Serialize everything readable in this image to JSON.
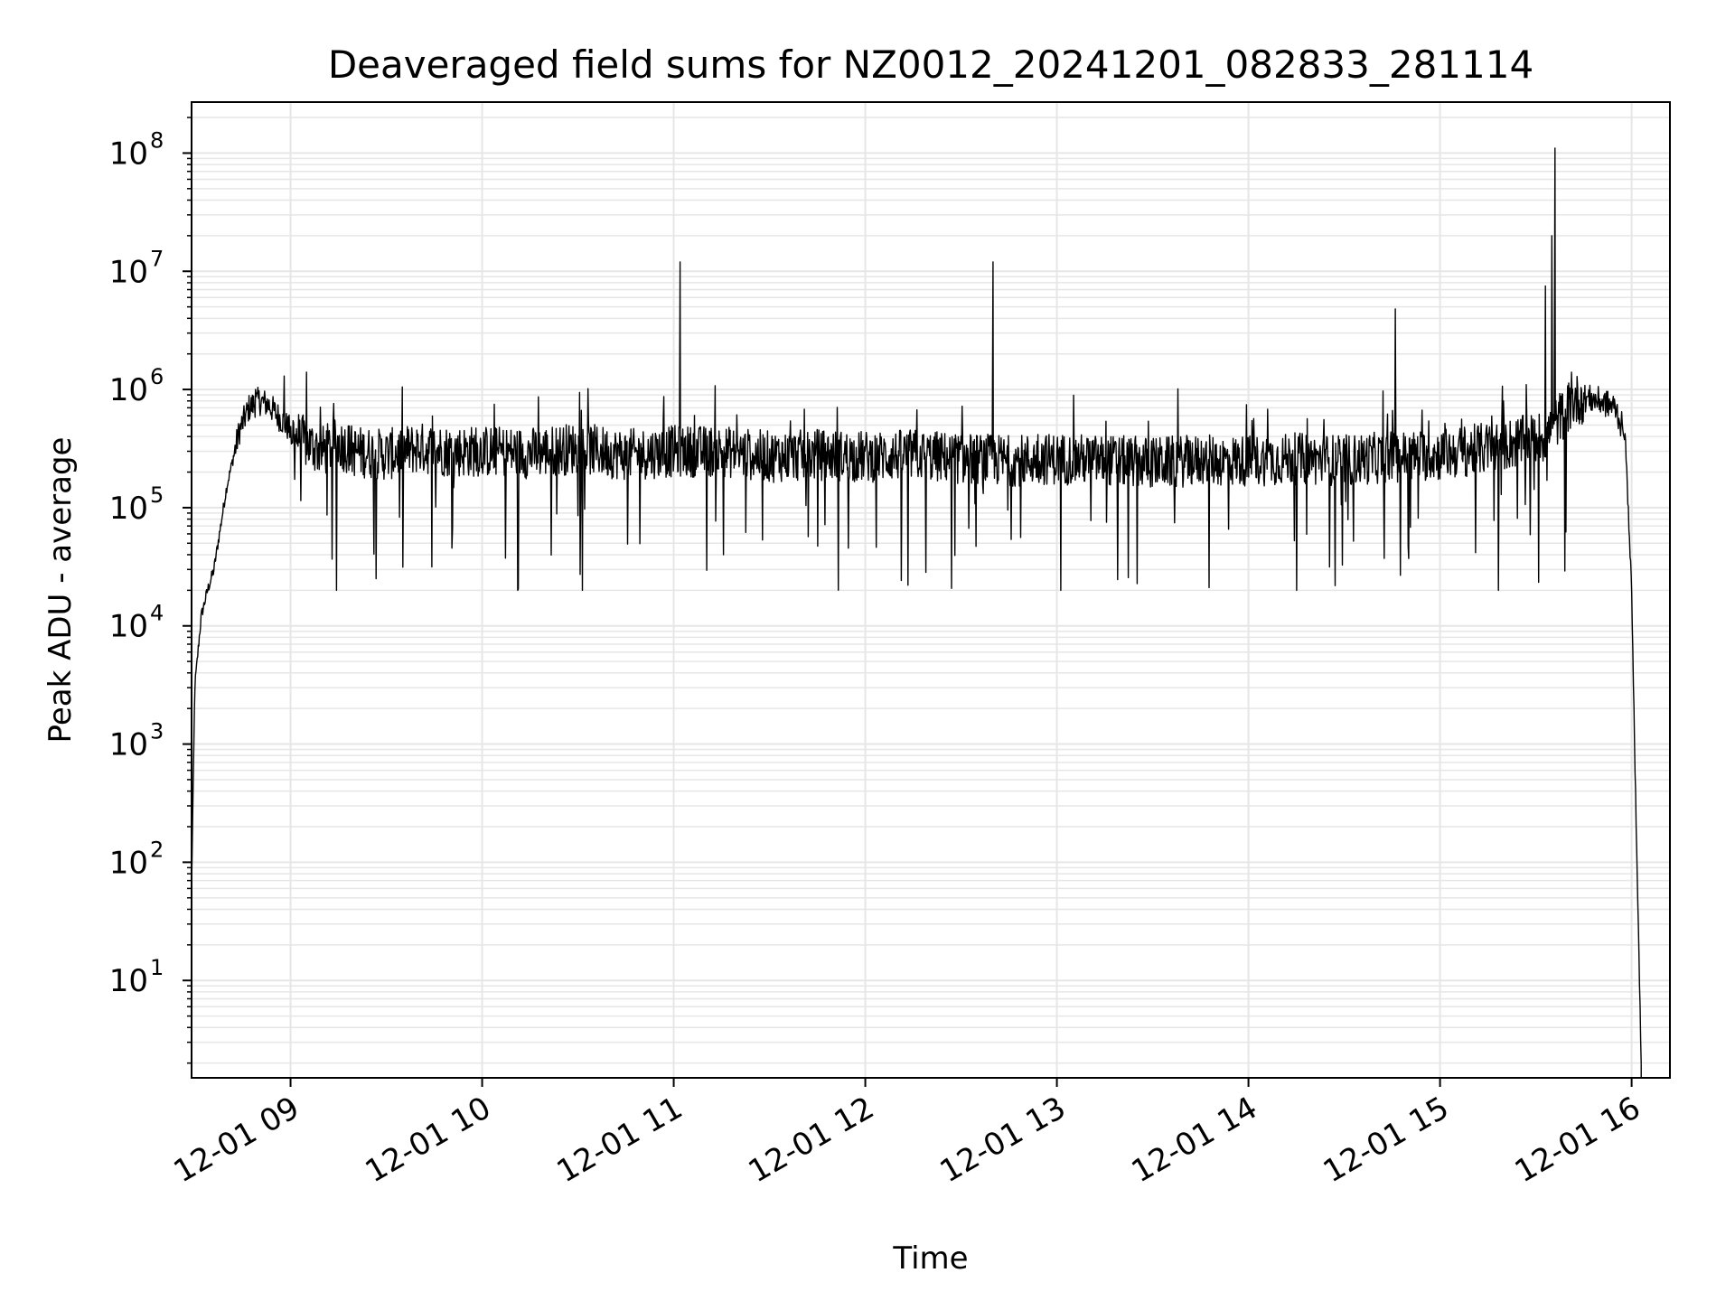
{
  "chart_data": {
    "type": "line",
    "title": "Deaveraged field sums for NZ0012_20241201_082833_281114",
    "xlabel": "Time",
    "ylabel": "Peak ADU - average",
    "yscale": "log",
    "grid": true,
    "colors": {
      "line": "#000000",
      "grid": "#e6e6e6",
      "axes": "#000000",
      "background": "#ffffff"
    },
    "xlim": [
      "12-01 08:29",
      "12-01 16:12"
    ],
    "ylim": [
      1.5,
      270000000.0
    ],
    "x_ticks": [
      "12-01 09",
      "12-01 10",
      "12-01 11",
      "12-01 12",
      "12-01 13",
      "12-01 14",
      "12-01 15",
      "12-01 16"
    ],
    "y_ticks": [
      {
        "base": "10",
        "exp": "1",
        "value": 10
      },
      {
        "base": "10",
        "exp": "2",
        "value": 100
      },
      {
        "base": "10",
        "exp": "3",
        "value": 1000
      },
      {
        "base": "10",
        "exp": "4",
        "value": 10000
      },
      {
        "base": "10",
        "exp": "5",
        "value": 100000
      },
      {
        "base": "10",
        "exp": "6",
        "value": 1000000
      },
      {
        "base": "10",
        "exp": "7",
        "value": 10000000
      },
      {
        "base": "10",
        "exp": "8",
        "value": 100000000
      }
    ],
    "series": [
      {
        "x": [
          "12-01 08:29",
          "12-01 08:30",
          "12-01 08:32",
          "12-01 08:34",
          "12-01 08:36",
          "12-01 08:40",
          "12-01 08:44",
          "12-01 08:47",
          "12-01 08:50",
          "12-01 08:53",
          "12-01 08:56",
          "12-01 09:00",
          "12-01 09:05",
          "12-01 09:10",
          "12-01 09:15",
          "12-01 09:20",
          "12-01 09:30",
          "12-01 09:40",
          "12-01 09:50",
          "12-01 10:00",
          "12-01 10:15",
          "12-01 10:30",
          "12-01 10:45",
          "12-01 11:00",
          "12-01 11:15",
          "12-01 11:30",
          "12-01 11:45",
          "12-01 12:00",
          "12-01 12:15",
          "12-01 12:30",
          "12-01 12:45",
          "12-01 13:00",
          "12-01 13:15",
          "12-01 13:30",
          "12-01 13:45",
          "12-01 14:00",
          "12-01 14:15",
          "12-01 14:30",
          "12-01 14:45",
          "12-01 15:00",
          "12-01 15:15",
          "12-01 15:25",
          "12-01 15:33",
          "12-01 15:38",
          "12-01 15:42",
          "12-01 15:45",
          "12-01 15:50",
          "12-01 15:55",
          "12-01 15:58",
          "12-01 16:00",
          "12-01 16:01",
          "12-01 16:02",
          "12-01 16:03"
        ],
        "y": [
          60,
          3000,
          12000,
          20000,
          30000,
          150000,
          450000,
          700000,
          800000,
          750000,
          600000,
          450000,
          350000,
          300000,
          350000,
          300000,
          280000,
          320000,
          300000,
          300000,
          290000,
          320000,
          280000,
          300000,
          300000,
          270000,
          280000,
          270000,
          280000,
          260000,
          250000,
          260000,
          250000,
          240000,
          250000,
          250000,
          260000,
          250000,
          270000,
          280000,
          320000,
          360000,
          400000,
          600000,
          800000,
          850000,
          800000,
          700000,
          400000,
          20000,
          800,
          40,
          2
        ],
        "noise_range": [
          20000,
          1400000
        ],
        "spikes": [
          {
            "x": "12-01 08:49",
            "y": 1000000
          },
          {
            "x": "12-01 08:58",
            "y": 1300000
          },
          {
            "x": "12-01 09:05",
            "y": 1400000
          },
          {
            "x": "12-01 09:35",
            "y": 1050000
          },
          {
            "x": "12-01 11:02",
            "y": 12000000
          },
          {
            "x": "12-01 12:40",
            "y": 12000000
          },
          {
            "x": "12-01 14:46",
            "y": 4800000
          },
          {
            "x": "12-01 15:27",
            "y": 1100000
          },
          {
            "x": "12-01 15:33",
            "y": 7500000
          },
          {
            "x": "12-01 15:36",
            "y": 110000000
          },
          {
            "x": "12-01 15:35",
            "y": 20000000
          }
        ]
      }
    ]
  }
}
